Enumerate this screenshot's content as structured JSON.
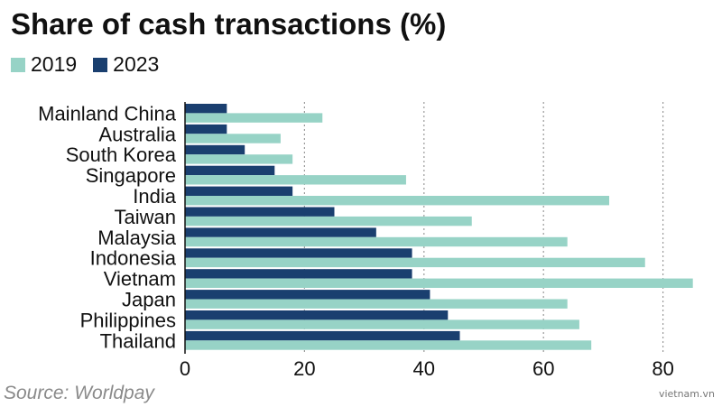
{
  "chart_data": {
    "type": "bar",
    "orientation": "horizontal",
    "title": "Share of cash transactions (%)",
    "categories": [
      "Mainland China",
      "Australia",
      "South Korea",
      "Singapore",
      "India",
      "Taiwan",
      "Malaysia",
      "Indonesia",
      "Vietnam",
      "Japan",
      "Philippines",
      "Thailand"
    ],
    "series": [
      {
        "name": "2023",
        "color": "#1a3f6f",
        "values": [
          7,
          7,
          10,
          15,
          18,
          25,
          32,
          38,
          38,
          41,
          44,
          46
        ]
      },
      {
        "name": "2019",
        "color": "#97d3c6",
        "values": [
          23,
          16,
          18,
          37,
          71,
          48,
          64,
          77,
          85,
          64,
          66,
          68
        ]
      }
    ],
    "xlim": [
      0,
      85
    ],
    "xticks": [
      0,
      20,
      40,
      60,
      80
    ],
    "grid": "vertical dotted",
    "legend_position": "top-left"
  },
  "legend": {
    "items": [
      {
        "label": "2019",
        "color": "#97d3c6"
      },
      {
        "label": "2023",
        "color": "#1a3f6f"
      }
    ]
  },
  "source": "Source: Worldpay",
  "watermark": "vietnam.vn"
}
